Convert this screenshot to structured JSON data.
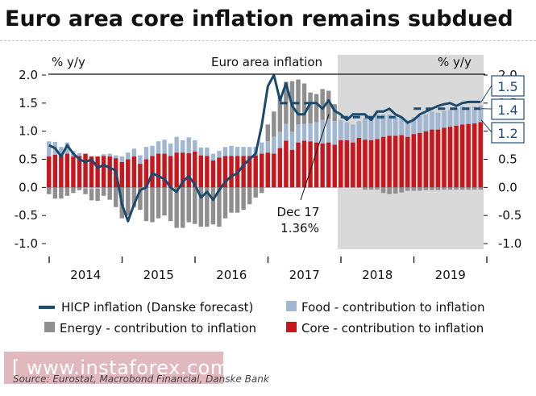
{
  "title": "Euro area core inflation remains subdued",
  "source": "Source: Eurostat, Macrobond Financial, Danske Bank",
  "watermark": "[ www.instaforex.com ]",
  "colors": {
    "core": "#c8161d",
    "energy": "#8f8f8f",
    "food": "#a0b7d4",
    "hicp": "#1a4a6e",
    "forecast_shade": "#d9d9d9",
    "callout": "#1f4d78"
  },
  "chart_data": {
    "type": "bar",
    "title": "Euro area inflation",
    "left_axis_label": "% y/y",
    "right_axis_label": "% y/y",
    "ylim": [
      -1.1,
      2.0
    ],
    "y_ticks": [
      "2.0",
      "1.5",
      "1.0",
      "0.5",
      "0.0",
      "-0.5",
      "-1.0"
    ],
    "tick_values": [
      2.0,
      1.5,
      1.0,
      0.5,
      0.0,
      -0.5,
      -1.0
    ],
    "x_start": "2014-01",
    "year_labels": [
      "2014",
      "2015",
      "2016",
      "2017",
      "2018",
      "2019"
    ],
    "forecast_start_index": 48,
    "annotations": {
      "callout_date": "Dec 17",
      "callout_value": "1.36%",
      "right_value_labels": [
        "1.5",
        "1.4",
        "1.2"
      ],
      "right_value_levels": [
        1.52,
        1.4,
        1.2
      ]
    },
    "dashed_levels": [
      {
        "level": 1.5,
        "from_index": 38,
        "to_index": 44
      },
      {
        "level": 1.25,
        "from_index": 48,
        "to_index": 57
      },
      {
        "level": 1.4,
        "from_index": 60,
        "to_index": 71
      }
    ],
    "series": [
      {
        "name": "Core - contribution to inflation",
        "key": "core",
        "values": [
          0.55,
          0.58,
          0.6,
          0.6,
          0.55,
          0.56,
          0.6,
          0.55,
          0.55,
          0.56,
          0.55,
          0.52,
          0.45,
          0.5,
          0.55,
          0.42,
          0.5,
          0.56,
          0.6,
          0.6,
          0.56,
          0.62,
          0.62,
          0.61,
          0.64,
          0.57,
          0.56,
          0.48,
          0.53,
          0.56,
          0.56,
          0.56,
          0.56,
          0.56,
          0.57,
          0.6,
          0.62,
          0.6,
          0.7,
          0.83,
          0.67,
          0.8,
          0.83,
          0.82,
          0.8,
          0.78,
          0.8,
          0.76,
          0.84,
          0.84,
          0.8,
          0.88,
          0.85,
          0.84,
          0.86,
          0.9,
          0.92,
          0.92,
          0.93,
          0.9,
          0.95,
          0.97,
          1.0,
          1.03,
          1.03,
          1.06,
          1.08,
          1.1,
          1.12,
          1.13,
          1.14,
          1.16
        ]
      },
      {
        "name": "Food - contribution to inflation",
        "key": "food",
        "values": [
          0.27,
          0.23,
          0.12,
          0.2,
          0.1,
          0.05,
          -0.02,
          -0.03,
          -0.02,
          0.03,
          0.05,
          0.05,
          0.1,
          0.12,
          0.14,
          0.15,
          0.22,
          0.18,
          0.22,
          0.25,
          0.22,
          0.28,
          0.22,
          0.28,
          0.2,
          0.14,
          0.15,
          0.12,
          0.12,
          0.16,
          0.18,
          0.16,
          0.16,
          0.16,
          0.15,
          0.2,
          0.2,
          0.3,
          0.29,
          0.3,
          0.32,
          0.32,
          0.3,
          0.32,
          0.36,
          0.42,
          0.42,
          0.42,
          0.36,
          0.32,
          0.32,
          0.3,
          0.38,
          0.42,
          0.44,
          0.4,
          0.38,
          0.34,
          0.32,
          0.3,
          0.3,
          0.3,
          0.3,
          0.32,
          0.3,
          0.3,
          0.3,
          0.3,
          0.32,
          0.3,
          0.3,
          0.3
        ]
      },
      {
        "name": "Energy - contribution to inflation",
        "key": "energy",
        "values": [
          -0.12,
          -0.2,
          -0.2,
          -0.15,
          -0.1,
          -0.05,
          -0.1,
          -0.2,
          -0.22,
          -0.15,
          -0.22,
          -0.35,
          -0.55,
          -0.5,
          -0.35,
          -0.4,
          -0.6,
          -0.62,
          -0.55,
          -0.5,
          -0.6,
          -0.72,
          -0.72,
          -0.62,
          -0.65,
          -0.7,
          -0.7,
          -0.66,
          -0.7,
          -0.55,
          -0.45,
          -0.45,
          -0.4,
          -0.3,
          -0.18,
          -0.1,
          0.3,
          0.45,
          0.62,
          0.75,
          0.9,
          0.8,
          0.72,
          0.55,
          0.5,
          0.55,
          0.5,
          0.3,
          0.0,
          0.0,
          0.0,
          0.0,
          -0.04,
          -0.04,
          -0.04,
          -0.1,
          -0.12,
          -0.11,
          -0.09,
          -0.06,
          -0.06,
          -0.06,
          -0.05,
          -0.05,
          -0.05,
          -0.04,
          -0.04,
          -0.04,
          -0.04,
          -0.04,
          -0.04,
          -0.04
        ]
      },
      {
        "name": "HICP inflation (Danske forecast)",
        "key": "hicp",
        "values": [
          0.75,
          0.7,
          0.55,
          0.75,
          0.6,
          0.5,
          0.45,
          0.5,
          0.35,
          0.4,
          0.35,
          0.3,
          -0.3,
          -0.6,
          -0.3,
          -0.05,
          0.0,
          0.25,
          0.2,
          0.15,
          0.0,
          -0.08,
          0.1,
          0.2,
          0.05,
          -0.18,
          -0.08,
          -0.22,
          -0.05,
          0.1,
          0.2,
          0.25,
          0.4,
          0.5,
          0.6,
          1.1,
          1.8,
          2.0,
          1.55,
          1.85,
          1.45,
          1.3,
          1.3,
          1.5,
          1.5,
          1.4,
          1.55,
          1.36,
          1.3,
          1.2,
          1.3,
          1.3,
          1.3,
          1.2,
          1.35,
          1.35,
          1.4,
          1.3,
          1.25,
          1.15,
          1.2,
          1.3,
          1.35,
          1.4,
          1.45,
          1.48,
          1.5,
          1.45,
          1.5,
          1.52,
          1.52,
          1.52
        ]
      }
    ],
    "legend": [
      {
        "label": "HICP inflation (Danske forecast)",
        "key": "hicp",
        "kind": "line"
      },
      {
        "label": "Food - contribution to inflation",
        "key": "food",
        "kind": "box"
      },
      {
        "label": "Energy - contribution to inflation",
        "key": "energy",
        "kind": "box"
      },
      {
        "label": "Core - contribution to inflation",
        "key": "core",
        "kind": "box"
      }
    ]
  }
}
